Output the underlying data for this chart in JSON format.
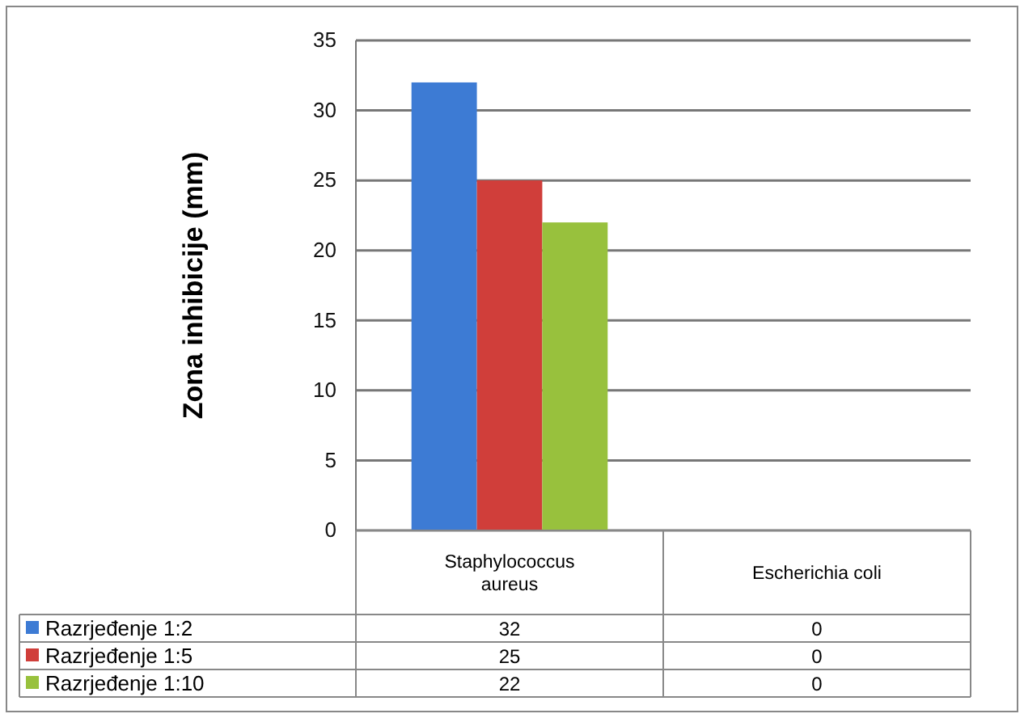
{
  "chart_data": {
    "type": "bar",
    "ylabel": "Zona inhibicije (mm)",
    "categories": [
      "Staphylococcus aureus",
      "Escherichia coli"
    ],
    "series": [
      {
        "name": "Razrjeđenje 1:2",
        "color": "#3d7bd4",
        "values": [
          32,
          0
        ]
      },
      {
        "name": "Razrjeđenje 1:5",
        "color": "#d03e3a",
        "values": [
          25,
          0
        ]
      },
      {
        "name": "Razrjeđenje 1:10",
        "color": "#98c13d",
        "values": [
          22,
          0
        ]
      }
    ],
    "ylim": [
      0,
      35
    ],
    "yticks": [
      0,
      5,
      10,
      15,
      20,
      25,
      30,
      35
    ],
    "grid": "y",
    "legend": "bottom",
    "data_labels": true
  }
}
